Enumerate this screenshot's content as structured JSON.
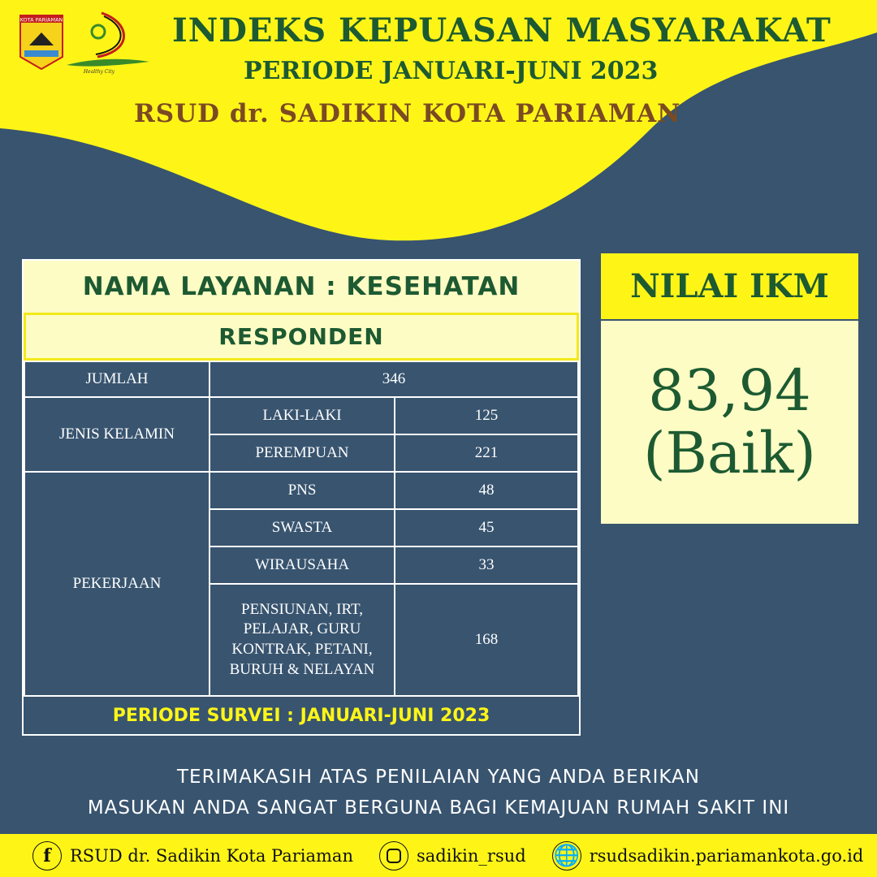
{
  "header": {
    "title": "INDEKS KEPUASAN MASYARAKAT",
    "period": "PERIODE JANUARI-JUNI 2023",
    "hospital": "RSUD dr. SADIKIN KOTA PARIAMAN",
    "logo1_text": "KOTA PARIAMAN",
    "logo2_text": "Healthy City"
  },
  "table": {
    "service": "NAMA LAYANAN : KESEHATAN",
    "section": "RESPONDEN",
    "jumlah": {
      "label": "JUMLAH",
      "value": "346"
    },
    "gender": {
      "label": "JENIS KELAMIN",
      "rows": [
        {
          "label": "LAKI-LAKI",
          "value": "125"
        },
        {
          "label": "PEREMPUAN",
          "value": "221"
        }
      ]
    },
    "job": {
      "label": "PEKERJAAN",
      "rows": [
        {
          "label": "PNS",
          "value": "48"
        },
        {
          "label": "SWASTA",
          "value": "45"
        },
        {
          "label": "WIRAUSAHA",
          "value": "33"
        },
        {
          "label": "PENSIUNAN, IRT, PELAJAR, GURU KONTRAK, PETANI, BURUH & NELAYAN",
          "value": "168"
        }
      ]
    },
    "footer": "PERIODE SURVEI : JANUARI-JUNI 2023"
  },
  "ikm": {
    "label": "NILAI IKM",
    "value": "83,94",
    "category": "(Baik)"
  },
  "message": [
    "TERIMAKASIH ATAS PENILAIAN YANG ANDA BERIKAN",
    "MASUKAN ANDA SANGAT BERGUNA BAGI KEMAJUAN RUMAH SAKIT INI"
  ],
  "footer": {
    "facebook": "RSUD dr. Sadikin Kota Pariaman",
    "instagram": "sadikin_rsud",
    "website": "rsudsadikin.pariamankota.go.id",
    "icons": [
      "facebook-icon",
      "instagram-icon",
      "globe-icon"
    ]
  },
  "colors": {
    "navy": "#38546f",
    "yellow": "#fef517",
    "green": "#1d5a32",
    "light_yellow": "#fdfcc4",
    "brown": "#7b4a22"
  }
}
